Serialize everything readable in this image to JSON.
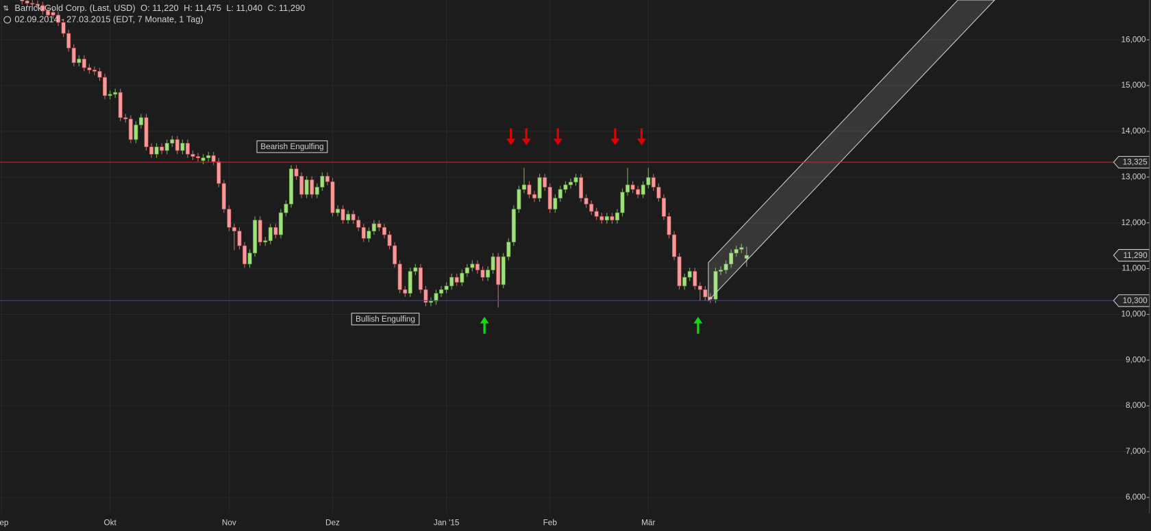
{
  "header": {
    "title": "Barrick Gold Corp. (Last, USD)",
    "ohlc": [
      "O: 11,220",
      "H: 11,475",
      "L: 11,040",
      "C: 11,290"
    ],
    "range": "02.09.2014 - 27.03.2015 (EDT, 7 Monate, 1 Tag)"
  },
  "chart_data": {
    "type": "candlestick",
    "open": [
      16.9,
      16.85,
      16.8,
      16.78,
      16.75,
      16.63,
      16.6,
      16.54,
      16.38,
      16.14,
      15.82,
      15.5,
      15.58,
      15.39,
      15.34,
      15.31,
      15.18,
      14.78,
      14.81,
      14.85,
      14.3,
      14.27,
      13.82,
      14.14,
      14.3,
      13.66,
      13.5,
      13.66,
      13.58,
      13.74,
      13.82,
      13.58,
      13.74,
      13.5,
      13.45,
      13.36,
      13.42,
      13.47,
      13.34,
      12.86,
      12.3,
      11.9,
      11.82,
      11.5,
      11.1,
      11.34,
      12.06,
      11.58,
      11.61,
      11.9,
      11.74,
      12.22,
      12.41,
      13.18,
      13.02,
      12.62,
      12.94,
      12.62,
      12.78,
      13.02,
      12.9,
      12.22,
      12.3,
      12.06,
      12.19,
      12.06,
      11.9,
      11.66,
      11.82,
      11.98,
      11.9,
      11.74,
      11.5,
      11.1,
      10.54,
      10.46,
      10.94,
      11.02,
      10.54,
      10.26,
      10.29,
      10.46,
      10.54,
      10.62,
      10.81,
      10.7,
      10.9,
      11.02,
      11.1,
      10.97,
      10.81,
      10.97,
      11.26,
      10.65,
      11.26,
      11.58,
      12.3,
      12.73,
      12.83,
      12.62,
      12.54,
      12.99,
      12.78,
      12.3,
      12.54,
      12.73,
      12.83,
      12.89,
      12.99,
      12.54,
      12.41,
      12.25,
      12.14,
      12.06,
      12.14,
      12.06,
      12.22,
      12.67,
      12.83,
      12.73,
      12.62,
      12.83,
      12.99,
      12.78,
      12.54,
      12.14,
      11.74,
      11.26,
      10.62,
      10.81,
      10.94,
      10.62,
      10.54,
      10.38,
      10.33,
      10.94,
      10.97,
      11.1,
      11.34,
      11.42,
      11.22
    ],
    "high": [
      16.98,
      16.93,
      16.88,
      16.86,
      16.83,
      16.71,
      16.68,
      16.62,
      16.46,
      16.22,
      15.9,
      15.66,
      15.66,
      15.47,
      15.42,
      15.39,
      15.26,
      14.89,
      14.93,
      14.93,
      14.38,
      14.35,
      14.22,
      14.38,
      14.38,
      13.74,
      13.74,
      13.74,
      13.82,
      13.9,
      13.9,
      13.82,
      13.82,
      13.58,
      13.53,
      13.5,
      13.55,
      13.55,
      13.42,
      12.94,
      12.38,
      11.98,
      11.9,
      11.58,
      11.42,
      12.14,
      12.14,
      11.69,
      11.98,
      11.98,
      12.3,
      12.49,
      13.26,
      13.26,
      13.1,
      13.02,
      13.02,
      12.86,
      13.1,
      13.1,
      12.98,
      12.38,
      12.38,
      12.27,
      12.27,
      12.14,
      11.98,
      11.9,
      12.06,
      12.06,
      11.98,
      11.82,
      11.58,
      11.18,
      10.62,
      11.02,
      11.1,
      11.1,
      10.62,
      10.37,
      10.54,
      10.62,
      10.7,
      10.89,
      10.89,
      10.98,
      11.1,
      11.18,
      11.18,
      11.05,
      11.05,
      11.34,
      11.34,
      11.34,
      11.66,
      12.38,
      12.81,
      13.2,
      12.91,
      12.7,
      13.07,
      13.07,
      12.86,
      12.62,
      12.81,
      12.91,
      12.97,
      13.07,
      13.07,
      12.62,
      12.49,
      12.33,
      12.22,
      12.22,
      12.22,
      12.3,
      12.75,
      13.2,
      12.91,
      12.81,
      12.91,
      13.2,
      13.07,
      12.86,
      12.62,
      12.22,
      11.82,
      11.34,
      10.89,
      11.02,
      11.02,
      10.7,
      10.62,
      10.46,
      11.02,
      11.05,
      11.18,
      11.42,
      11.5,
      11.54,
      11.475
    ],
    "low": [
      16.77,
      16.72,
      16.7,
      16.67,
      16.55,
      16.46,
      16.46,
      16.3,
      16.06,
      15.74,
      15.42,
      15.42,
      15.31,
      15.26,
      15.23,
      15.1,
      14.7,
      14.7,
      14.73,
      14.22,
      14.19,
      13.74,
      13.74,
      14.06,
      13.58,
      13.42,
      13.42,
      13.5,
      13.5,
      13.66,
      13.5,
      13.5,
      13.42,
      13.37,
      13.34,
      13.28,
      13.34,
      13.26,
      12.78,
      12.22,
      11.82,
      11.4,
      11.42,
      11.02,
      11.02,
      11.26,
      11.5,
      11.5,
      11.53,
      11.66,
      11.66,
      12.14,
      12.33,
      12.94,
      12.54,
      12.54,
      12.54,
      12.54,
      12.7,
      12.82,
      12.14,
      12.14,
      11.98,
      11.98,
      11.98,
      11.82,
      11.58,
      11.58,
      11.74,
      11.82,
      11.66,
      11.42,
      11.02,
      10.46,
      10.38,
      10.38,
      10.86,
      10.46,
      10.18,
      10.18,
      10.21,
      10.38,
      10.46,
      10.54,
      10.62,
      10.62,
      10.82,
      10.94,
      10.89,
      10.73,
      10.73,
      10.89,
      10.15,
      10.57,
      11.18,
      11.5,
      12.22,
      12.65,
      12.54,
      12.46,
      12.46,
      12.7,
      12.22,
      12.22,
      12.46,
      12.65,
      12.75,
      12.81,
      12.46,
      12.33,
      12.17,
      12.06,
      11.98,
      11.98,
      11.98,
      11.98,
      12.14,
      12.59,
      12.65,
      12.54,
      12.54,
      12.75,
      12.7,
      12.46,
      12.06,
      11.66,
      11.18,
      10.54,
      10.54,
      10.73,
      10.54,
      10.3,
      10.3,
      10.25,
      10.25,
      10.86,
      10.89,
      11.02,
      11.26,
      11.34,
      11.04
    ],
    "close": [
      16.85,
      16.8,
      16.78,
      16.75,
      16.63,
      16.54,
      16.54,
      16.38,
      16.14,
      15.82,
      15.5,
      15.58,
      15.39,
      15.34,
      15.31,
      15.18,
      14.78,
      14.81,
      14.85,
      14.3,
      14.27,
      13.82,
      14.14,
      14.3,
      13.66,
      13.5,
      13.66,
      13.58,
      13.74,
      13.82,
      13.58,
      13.74,
      13.5,
      13.45,
      13.42,
      13.42,
      13.47,
      13.34,
      12.86,
      12.3,
      11.9,
      11.82,
      11.5,
      11.1,
      11.34,
      12.06,
      11.58,
      11.61,
      11.9,
      11.74,
      12.22,
      12.41,
      13.18,
      13.02,
      12.62,
      12.94,
      12.62,
      12.78,
      13.02,
      12.9,
      12.22,
      12.3,
      12.06,
      12.19,
      12.06,
      11.9,
      11.66,
      11.82,
      11.98,
      11.9,
      11.74,
      11.5,
      11.1,
      10.54,
      10.46,
      10.94,
      11.02,
      10.54,
      10.26,
      10.29,
      10.46,
      10.54,
      10.62,
      10.81,
      10.7,
      10.9,
      11.02,
      11.1,
      10.97,
      10.81,
      10.97,
      11.26,
      10.65,
      11.26,
      11.58,
      12.3,
      12.73,
      12.83,
      12.62,
      12.54,
      12.99,
      12.78,
      12.3,
      12.54,
      12.73,
      12.83,
      12.89,
      12.99,
      12.54,
      12.41,
      12.25,
      12.14,
      12.06,
      12.14,
      12.06,
      12.22,
      12.67,
      12.83,
      12.73,
      12.62,
      12.83,
      12.99,
      12.78,
      12.54,
      12.14,
      11.74,
      11.26,
      10.62,
      10.81,
      10.94,
      10.62,
      10.54,
      10.38,
      10.33,
      10.94,
      10.97,
      11.1,
      11.34,
      11.42,
      11.46,
      11.29
    ],
    "up_color": "#9fe07a",
    "down_color": "#f59a9a",
    "xlim": [
      -4.26,
      217.7
    ],
    "xticks": [
      {
        "value": -4,
        "label": "Sep"
      },
      {
        "value": 17,
        "label": "Okt"
      },
      {
        "value": 40,
        "label": "Nov"
      },
      {
        "value": 60,
        "label": "Dez"
      },
      {
        "value": 82,
        "label": "Jan '15"
      },
      {
        "value": 102,
        "label": "Feb"
      },
      {
        "value": 121,
        "label": "Mär"
      }
    ],
    "ylim": [
      5.65,
      16.87
    ],
    "yticks": [
      {
        "value": 6,
        "label": "6,000"
      },
      {
        "value": 7,
        "label": "7,000"
      },
      {
        "value": 8,
        "label": "8,000"
      },
      {
        "value": 9,
        "label": "9,000"
      },
      {
        "value": 10,
        "label": "10,000"
      },
      {
        "value": 11,
        "label": "11,000"
      },
      {
        "value": 12,
        "label": "12,000"
      },
      {
        "value": 13,
        "label": "13,000"
      },
      {
        "value": 14,
        "label": "14,000"
      },
      {
        "value": 15,
        "label": "15,000"
      },
      {
        "value": 16,
        "label": "16,000"
      }
    ],
    "grid": true,
    "hlines": [
      {
        "value": 13.325,
        "label": "13,325",
        "color": "#d42020"
      },
      {
        "value": 10.3,
        "label": "10,300",
        "color": "#2a3cd8"
      }
    ],
    "last_price": {
      "value": 11.29,
      "label": "11,290"
    },
    "annotations": [
      "Bearish Engulfing",
      "Bullish Engulfing"
    ]
  }
}
